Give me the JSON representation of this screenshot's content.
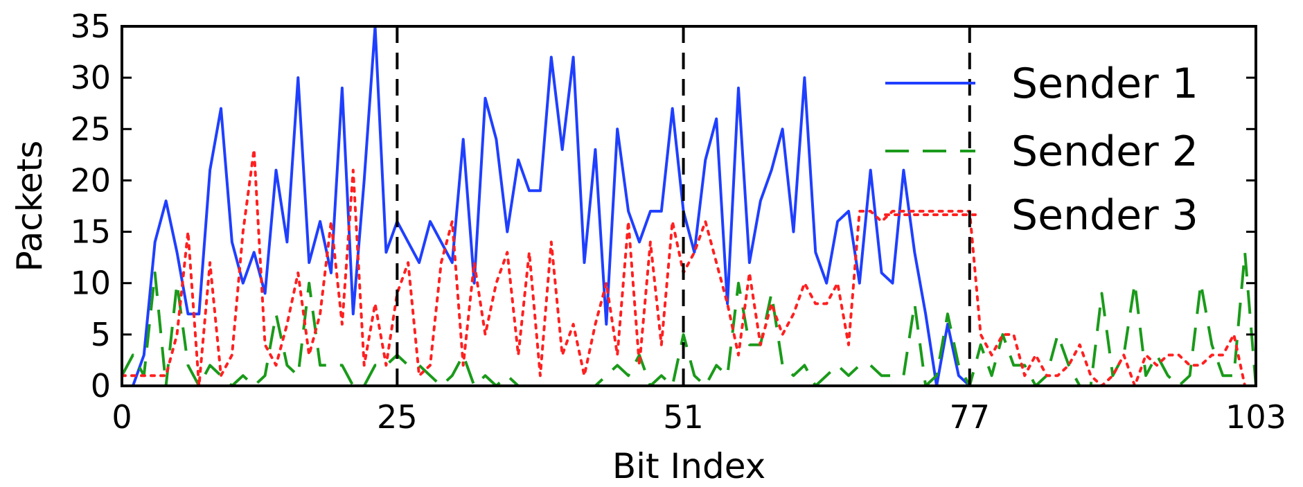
{
  "chart_data": {
    "type": "line",
    "xlabel": "Bit Index",
    "ylabel": "Packets",
    "xlim": [
      0,
      103
    ],
    "ylim": [
      0,
      35
    ],
    "xticks": [
      0,
      25,
      51,
      77,
      103
    ],
    "yticks": [
      0,
      5,
      10,
      15,
      20,
      25,
      30,
      35
    ],
    "vlines": [
      25,
      51,
      77
    ],
    "grid": false,
    "legend_position": "top-right",
    "series": [
      {
        "name": "Sender 1",
        "color": "#1f3fff",
        "style": "solid",
        "values": [
          0,
          0,
          3,
          14,
          18,
          13,
          7,
          7,
          21,
          27,
          14,
          10,
          13,
          9,
          21,
          14,
          30,
          12,
          16,
          11,
          29,
          7,
          20,
          35,
          13,
          16,
          14,
          12,
          16,
          14,
          12,
          24,
          10,
          28,
          24,
          15,
          22,
          19,
          19,
          32,
          23,
          32,
          12,
          23,
          6,
          25,
          17,
          14,
          17,
          17,
          27,
          17,
          13,
          22,
          26,
          8,
          29,
          12,
          18,
          21,
          25,
          15,
          30,
          13,
          10,
          16,
          17,
          10,
          21,
          11,
          10,
          21,
          13,
          7,
          0,
          6,
          1,
          0,
          0,
          0,
          0,
          0,
          0,
          0,
          0,
          0,
          0,
          0,
          0,
          0,
          0,
          0,
          0,
          0,
          0,
          0,
          0,
          0,
          0,
          0,
          0,
          0,
          0,
          0
        ]
      },
      {
        "name": "Sender 2",
        "color": "#1a9a1a",
        "style": "dashed",
        "values": [
          1,
          3,
          1,
          11,
          0,
          10,
          2,
          0,
          2,
          1,
          0,
          1,
          0,
          1,
          7,
          2,
          1,
          10,
          2,
          2,
          2,
          0,
          0,
          2,
          2,
          3,
          2,
          2,
          1,
          0,
          1,
          3,
          0,
          1,
          0,
          1,
          0,
          0,
          0,
          0,
          0,
          0,
          0,
          0,
          1,
          2,
          1,
          3,
          0,
          1,
          0,
          5,
          1,
          0,
          2,
          1,
          10,
          4,
          4,
          9,
          2,
          1,
          2,
          0,
          1,
          2,
          1,
          2,
          2,
          1,
          1,
          1,
          8,
          0,
          1,
          7,
          2,
          0,
          4,
          1,
          5,
          2,
          2,
          0,
          1,
          5,
          2,
          0,
          0,
          9,
          1,
          3,
          10,
          1,
          3,
          1,
          0,
          1,
          10,
          4,
          1,
          1,
          13,
          0
        ]
      },
      {
        "name": "Sender 3",
        "color": "#ff2020",
        "style": "dotted",
        "values": [
          1,
          1,
          1,
          1,
          1,
          5,
          15,
          0,
          12,
          1,
          3,
          15,
          23,
          4,
          2,
          6,
          11,
          3,
          7,
          16,
          6,
          21,
          2,
          8,
          2,
          9,
          12,
          1,
          2,
          12,
          16,
          2,
          12,
          5,
          10,
          13,
          3,
          13,
          1,
          14,
          3,
          6,
          1,
          6,
          10,
          3,
          16,
          2,
          14,
          4,
          16,
          11,
          13,
          16,
          12,
          8,
          3,
          11,
          4,
          8,
          5,
          7,
          10,
          8,
          8,
          10,
          4,
          17,
          17,
          16,
          17,
          17,
          17,
          17,
          17,
          17,
          17,
          17,
          5,
          3,
          5,
          5,
          1,
          3,
          1,
          1,
          2,
          4,
          1,
          0,
          1,
          3,
          0,
          3,
          2,
          3,
          3,
          2,
          2,
          3,
          3,
          5,
          0,
          0
        ]
      }
    ]
  }
}
